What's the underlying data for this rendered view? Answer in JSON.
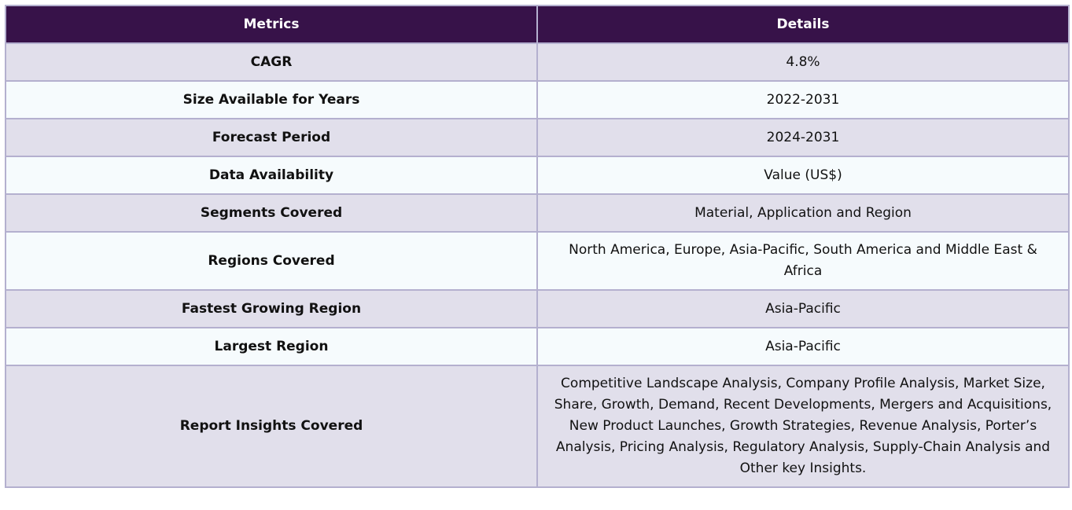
{
  "table": {
    "headers": [
      "Metrics",
      "Details"
    ],
    "rows": [
      {
        "metric": "CAGR",
        "detail": "4.8%"
      },
      {
        "metric": "Size Available for Years",
        "detail": "2022-2031"
      },
      {
        "metric": "Forecast Period",
        "detail": "2024-2031"
      },
      {
        "metric": "Data Availability",
        "detail": "Value (US$)"
      },
      {
        "metric": "Segments Covered",
        "detail": "Material, Application and Region"
      },
      {
        "metric": "Regions Covered",
        "detail": "North America, Europe, Asia-Pacific, South America and Middle East & Africa"
      },
      {
        "metric": "Fastest Growing Region",
        "detail": "Asia-Pacific"
      },
      {
        "metric": "Largest Region",
        "detail": "Asia-Pacific"
      },
      {
        "metric": "Report Insights Covered",
        "detail": "Competitive Landscape Analysis, Company Profile Analysis, Market Size, Share, Growth, Demand, Recent Developments, Mergers and Acquisitions, New Product Launches, Growth Strategies, Revenue Analysis, Porter’s Analysis, Pricing Analysis, Regulatory Analysis, Supply-Chain Analysis and Other key Insights."
      }
    ]
  },
  "colors": {
    "header_bg": "#371249",
    "row_odd_bg": "#e1dfeb",
    "row_even_bg": "#f6fbfd",
    "border": "#b4b0cf"
  }
}
